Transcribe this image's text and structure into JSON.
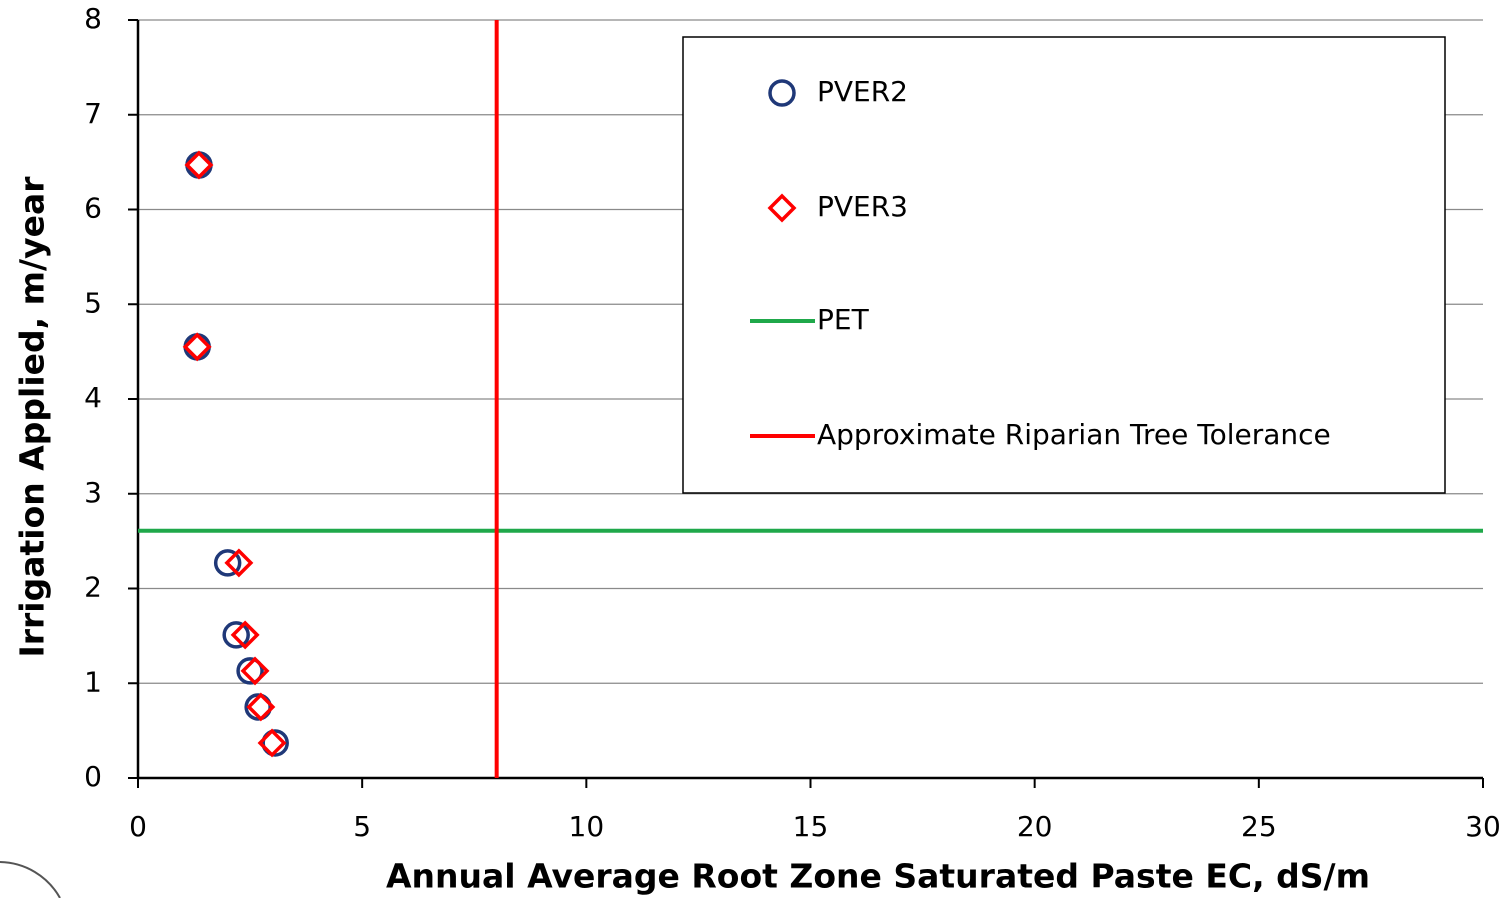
{
  "chart_data": {
    "type": "scatter",
    "xlabel": "Annual Average Root Zone Saturated Paste EC, dS/m",
    "ylabel": "Irrigation Applied, m/year",
    "xlim": [
      0,
      30
    ],
    "ylim": [
      0,
      8
    ],
    "xticks": [
      0,
      5,
      10,
      15,
      20,
      25,
      30
    ],
    "yticks": [
      0,
      1,
      2,
      3,
      4,
      5,
      6,
      7,
      8
    ],
    "grid": true,
    "legend": "upper right",
    "series": [
      {
        "name": "PVER2",
        "type": "scatter",
        "marker": "circle",
        "color": "#1f3878",
        "x": [
          1.36,
          1.32,
          2.0,
          2.19,
          2.5,
          2.68,
          3.06
        ],
        "values": [
          6.47,
          4.55,
          2.27,
          1.51,
          1.13,
          0.75,
          0.37
        ]
      },
      {
        "name": "PVER3",
        "type": "scatter",
        "marker": "diamond",
        "color": "#ff0000",
        "x": [
          1.36,
          1.32,
          2.25,
          2.39,
          2.61,
          2.74,
          2.99
        ],
        "values": [
          6.47,
          4.55,
          2.27,
          1.51,
          1.13,
          0.75,
          0.37
        ]
      },
      {
        "name": "PET",
        "type": "line",
        "color": "#1fa84a",
        "x": [
          0,
          30
        ],
        "values": [
          2.61,
          2.61
        ]
      },
      {
        "name": "Approximate Riparian Tree Tolerance",
        "type": "line",
        "color": "#ff0000",
        "x": [
          8,
          8
        ],
        "values": [
          0,
          8
        ]
      }
    ]
  }
}
